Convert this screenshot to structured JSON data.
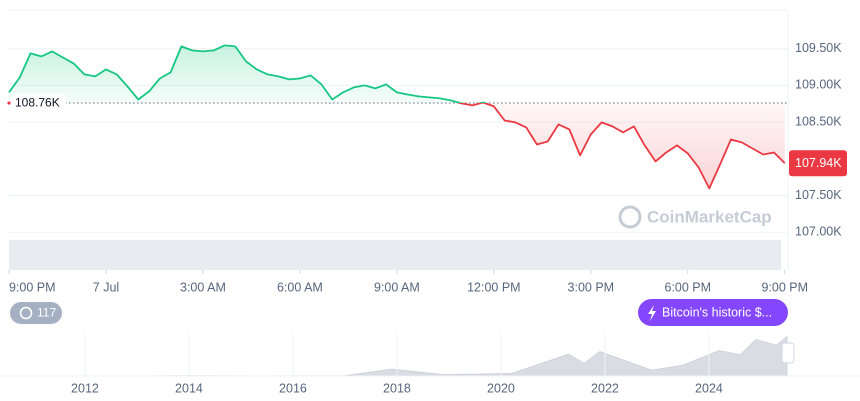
{
  "chart_data": {
    "type": "line",
    "x": [
      0,
      20,
      40,
      60,
      80,
      100,
      120,
      140,
      160,
      180,
      200,
      220,
      240,
      260,
      280,
      300,
      320,
      340,
      360,
      380,
      400,
      420,
      440,
      460,
      480,
      500,
      520,
      540,
      560,
      580,
      600,
      620,
      640,
      660,
      680,
      700,
      720,
      740,
      760,
      780,
      800,
      820,
      840,
      860,
      880,
      900,
      920,
      940,
      960,
      980,
      1000,
      1020,
      1040,
      1060,
      1080,
      1100,
      1120,
      1140,
      1160,
      1180,
      1200,
      1220,
      1240,
      1260,
      1280,
      1300,
      1320,
      1340,
      1360,
      1380,
      1400,
      1420,
      1440
    ],
    "series": [
      {
        "name": "Price",
        "color": "#16c784",
        "color_below": "#ea3943",
        "values": [
          108905,
          109109,
          109436,
          109395,
          109463,
          109381,
          109300,
          109150,
          109123,
          109218,
          109150,
          108986,
          108809,
          108918,
          109095,
          109177,
          109531,
          109477,
          109463,
          109477,
          109545,
          109531,
          109327,
          109218,
          109150,
          109123,
          109082,
          109095,
          109136,
          109014,
          108809,
          108905,
          108973,
          109000,
          108959,
          109014,
          108905,
          108877,
          108850,
          108837,
          108823,
          108796,
          108755,
          108728,
          108768,
          108714,
          108523,
          108496,
          108428,
          108196,
          108237,
          108469,
          108401,
          108047,
          108333,
          108496,
          108442,
          108360,
          108442,
          108183,
          107965,
          108087,
          108183,
          108074,
          107883,
          107597,
          107924,
          108264,
          108224,
          108142,
          108060,
          108087,
          107940
        ]
      }
    ],
    "baseline": {
      "value": 108760,
      "label": "108.76K"
    },
    "last_price": {
      "value": 107940,
      "label": "107.94K"
    },
    "xlim": [
      0,
      1446
    ],
    "xticks": [
      {
        "value": 0,
        "label": "9:00 PM"
      },
      {
        "value": 180,
        "label": "7 Jul"
      },
      {
        "value": 360,
        "label": "3:00 AM"
      },
      {
        "value": 540,
        "label": "6:00 AM"
      },
      {
        "value": 720,
        "label": "9:00 AM"
      },
      {
        "value": 900,
        "label": "12:00 PM"
      },
      {
        "value": 1080,
        "label": "3:00 PM"
      },
      {
        "value": 1260,
        "label": "6:00 PM"
      },
      {
        "value": 1440,
        "label": "9:00 PM"
      }
    ],
    "ylim": [
      106500,
      110000
    ],
    "yticks": [
      {
        "value": 107000,
        "label": "107.00K"
      },
      {
        "value": 107500,
        "label": "107.50K"
      },
      {
        "value": 108500,
        "label": "108.50K"
      },
      {
        "value": 109000,
        "label": "109.00K"
      },
      {
        "value": 109500,
        "label": "109.50K"
      }
    ],
    "grid": true,
    "watermark": "CoinMarketCap",
    "badge": "117",
    "news": "Bitcoin's historic $...",
    "navigator": {
      "x": [
        2010.6,
        2013.0,
        2013.9,
        2015.5,
        2017.0,
        2017.9,
        2018.9,
        2020.2,
        2021.3,
        2021.6,
        2021.9,
        2022.9,
        2023.5,
        2024.2,
        2024.6,
        2024.9,
        2025.3,
        2025.5
      ],
      "values": [
        0,
        100,
        1000,
        300,
        1000,
        19000,
        3500,
        7000,
        60000,
        35000,
        67000,
        16000,
        30000,
        70000,
        58000,
        100000,
        85000,
        108000
      ],
      "xlim": [
        2010.52,
        2025.52
      ],
      "ylim": [
        0,
        110000
      ],
      "color": "#d9dde3",
      "xticks": [
        2012,
        2014,
        2016,
        2018,
        2020,
        2022,
        2024
      ]
    }
  }
}
